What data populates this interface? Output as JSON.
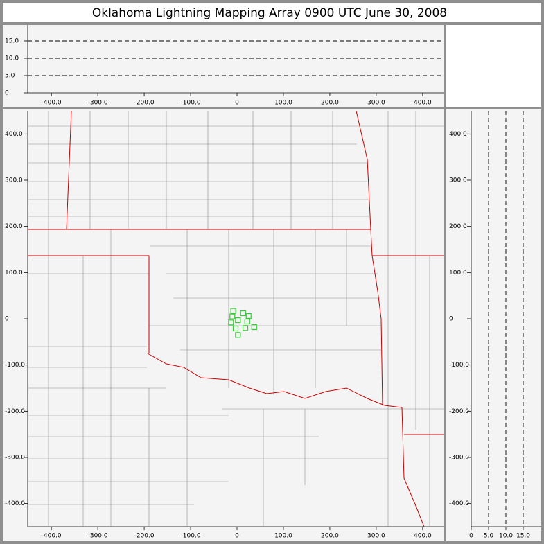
{
  "title": "Oklahoma Lightning Mapping Array   0900 UTC  June 30, 2008",
  "chart_data": [
    {
      "type": "scatter",
      "xlim": [
        -451,
        445
      ],
      "ylim": [
        0,
        20
      ],
      "xticks": [
        {
          "value": -400,
          "label": "-400.0"
        },
        {
          "value": -300,
          "label": "-300.0"
        },
        {
          "value": -200,
          "label": "-200.0"
        },
        {
          "value": -100,
          "label": "-100.0"
        },
        0,
        {
          "value": 100,
          "label": "100.0"
        },
        {
          "value": 200,
          "label": "200.0"
        },
        {
          "value": 300,
          "label": "300.0"
        },
        {
          "value": 400,
          "label": "400.0"
        }
      ],
      "yticks": [
        0,
        {
          "value": 5,
          "label": "5.0"
        },
        {
          "value": 10,
          "label": "10.0"
        },
        {
          "value": 15,
          "label": "15.0"
        }
      ],
      "grid": "y"
    },
    {
      "type": "scatter",
      "xlim": [
        -451,
        445
      ],
      "ylim": [
        -450,
        450
      ],
      "xticks": [
        {
          "value": -400,
          "label": "-400.0"
        },
        {
          "value": -300,
          "label": "-300.0"
        },
        {
          "value": -200,
          "label": "-200.0"
        },
        {
          "value": -100,
          "label": "-100.0"
        },
        0,
        {
          "value": 100,
          "label": "100.0"
        },
        {
          "value": 200,
          "label": "200.0"
        },
        {
          "value": 300,
          "label": "300.0"
        },
        {
          "value": 400,
          "label": "400.0"
        }
      ],
      "yticks": [
        {
          "value": 400,
          "label": "400.0"
        },
        {
          "value": 300,
          "label": "300.0"
        },
        {
          "value": 200,
          "label": "200.0"
        },
        {
          "value": 100,
          "label": "100.0"
        },
        0,
        {
          "value": -100,
          "label": "-100.0"
        },
        {
          "value": -200,
          "label": "-200.0"
        },
        {
          "value": -300,
          "label": "-300.0"
        },
        {
          "value": -400,
          "label": "-400.0"
        }
      ],
      "grid": false,
      "color": "#33cc33",
      "marker": "square",
      "x": [
        -8,
        -10,
        -13,
        2,
        13,
        25,
        22,
        37,
        18,
        -3,
        2
      ],
      "y": [
        17,
        5,
        -8,
        -3,
        12,
        6,
        -6,
        -18,
        -20,
        -21,
        -35
      ]
    },
    {
      "type": "scatter",
      "xlim": [
        0,
        20
      ],
      "ylim": [
        -450,
        450
      ],
      "xticks": [
        0,
        {
          "value": 5,
          "label": "5.0"
        },
        {
          "value": 10,
          "label": "10.0"
        },
        {
          "value": 15,
          "label": "15.0"
        }
      ],
      "yticks": [
        {
          "value": 400,
          "label": "400.0"
        },
        {
          "value": 300,
          "label": "300.0"
        },
        {
          "value": 200,
          "label": "200.0"
        },
        {
          "value": 100,
          "label": "100.0"
        },
        0,
        {
          "value": -100,
          "label": "-100.0"
        },
        {
          "value": -200,
          "label": "-200.0"
        },
        {
          "value": -300,
          "label": "-300.0"
        },
        {
          "value": -400,
          "label": "-400.0"
        }
      ],
      "grid": "x"
    }
  ]
}
